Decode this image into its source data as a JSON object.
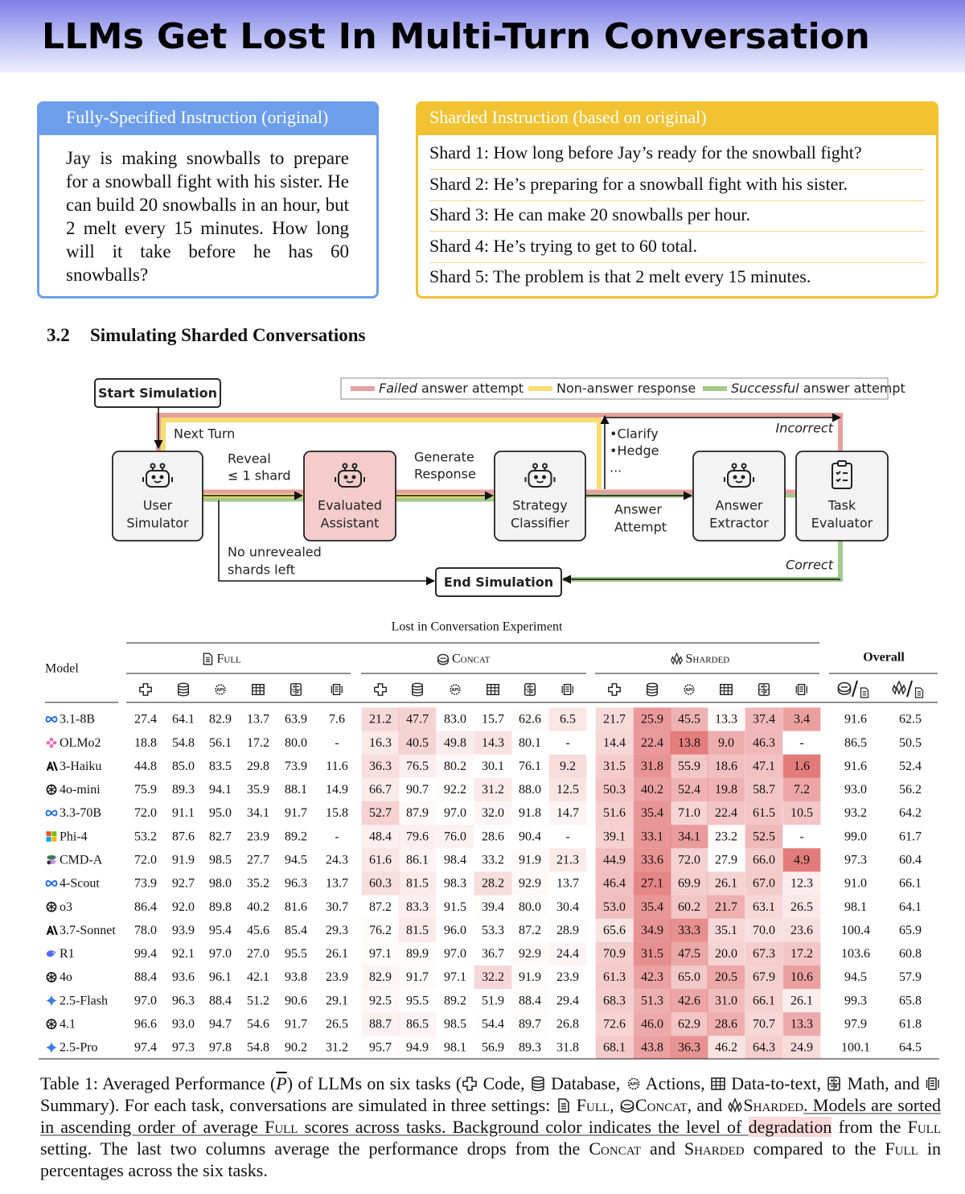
{
  "title": "LLMs Get Lost In Multi-Turn Conversation",
  "fully_specified": {
    "header": "Fully-Specified Instruction (original)",
    "text": "Jay is making snowballs to prepare for a snowball fight with his sister. He can build 20 snowballs in an hour, but 2 melt every 15 minutes. How long will it take before he has 60 snowballs?"
  },
  "sharded": {
    "header": "Sharded Instruction (based on original)",
    "shards": [
      "Shard 1: How long before Jay’s ready for the snowball fight?",
      "Shard 2: He’s preparing for a snowball fight with his sister.",
      "Shard 3: He can make 20 snowballs per hour.",
      "Shard 4: He’s trying to get to 60 total.",
      "Shard 5: The problem is that 2 melt every 15 minutes."
    ]
  },
  "section": {
    "number": "3.2",
    "title": "Simulating Sharded Conversations"
  },
  "diagram": {
    "legend": [
      {
        "emph": "Failed",
        "text": " answer attempt"
      },
      {
        "emph": "",
        "text": "Non-answer response"
      },
      {
        "emph": "Successful",
        "text": " answer attempt"
      }
    ],
    "start": "Start Simulation",
    "end": "End Simulation",
    "nodes": [
      [
        "User",
        "Simulator"
      ],
      [
        "Evaluated",
        "Assistant"
      ],
      [
        "Strategy",
        "Classifier"
      ],
      [
        "Answer",
        "Extractor"
      ],
      [
        "Task",
        "Evaluator"
      ]
    ],
    "next_turn": "Next Turn",
    "reveal": [
      "Reveal",
      "≤ 1 shard"
    ],
    "generate": [
      "Generate",
      "Response"
    ],
    "strategies": [
      "•Clarify",
      "•Hedge",
      "..."
    ],
    "answer_attempt": [
      "Answer",
      "Attempt"
    ],
    "no_shards": [
      "No unrevealed",
      "shards left"
    ],
    "incorrect": "Incorrect",
    "correct": "Correct"
  },
  "table": {
    "title": "Lost in Conversation Experiment",
    "model_header": "Model",
    "settings": [
      "Full",
      "Concat",
      "Sharded"
    ],
    "overall_header": "Overall",
    "rows": [
      {
        "model": "3.1-8B",
        "cells": [
          [
            "27.4",
            "64.1",
            "82.9",
            "13.7",
            "63.9",
            "7.6"
          ],
          [
            "21.2",
            "47.7",
            "83.0",
            "15.7",
            "62.6",
            "6.5"
          ],
          [
            "21.7",
            "25.9",
            "45.5",
            "13.3",
            "37.4",
            "3.4"
          ]
        ],
        "overall": [
          "91.6",
          "62.5"
        ]
      },
      {
        "model": "OLMo2",
        "cells": [
          [
            "18.8",
            "54.8",
            "56.1",
            "17.2",
            "80.0",
            "-"
          ],
          [
            "16.3",
            "40.5",
            "49.8",
            "14.3",
            "80.1",
            "-"
          ],
          [
            "14.4",
            "22.4",
            "13.8",
            "9.0",
            "46.3",
            "-"
          ]
        ],
        "overall": [
          "86.5",
          "50.5"
        ]
      },
      {
        "model": "3-Haiku",
        "cells": [
          [
            "44.8",
            "85.0",
            "83.5",
            "29.8",
            "73.9",
            "11.6"
          ],
          [
            "36.3",
            "76.5",
            "80.2",
            "30.1",
            "76.1",
            "9.2"
          ],
          [
            "31.5",
            "31.8",
            "55.9",
            "18.6",
            "47.1",
            "1.6"
          ]
        ],
        "overall": [
          "91.6",
          "52.4"
        ]
      },
      {
        "model": "4o-mini",
        "cells": [
          [
            "75.9",
            "89.3",
            "94.1",
            "35.9",
            "88.1",
            "14.9"
          ],
          [
            "66.7",
            "90.7",
            "92.2",
            "31.2",
            "88.0",
            "12.5"
          ],
          [
            "50.3",
            "40.2",
            "52.4",
            "19.8",
            "58.7",
            "7.2"
          ]
        ],
        "overall": [
          "93.0",
          "56.2"
        ]
      },
      {
        "model": "3.3-70B",
        "cells": [
          [
            "72.0",
            "91.1",
            "95.0",
            "34.1",
            "91.7",
            "15.8"
          ],
          [
            "52.7",
            "87.9",
            "97.0",
            "32.0",
            "91.8",
            "14.7"
          ],
          [
            "51.6",
            "35.4",
            "71.0",
            "22.4",
            "61.5",
            "10.5"
          ]
        ],
        "overall": [
          "93.2",
          "64.2"
        ]
      },
      {
        "model": "Phi-4",
        "cells": [
          [
            "53.2",
            "87.6",
            "82.7",
            "23.9",
            "89.2",
            "-"
          ],
          [
            "48.4",
            "79.6",
            "76.0",
            "28.6",
            "90.4",
            "-"
          ],
          [
            "39.1",
            "33.1",
            "34.1",
            "23.2",
            "52.5",
            "-"
          ]
        ],
        "overall": [
          "99.0",
          "61.7"
        ]
      },
      {
        "model": "CMD-A",
        "cells": [
          [
            "72.0",
            "91.9",
            "98.5",
            "27.7",
            "94.5",
            "24.3"
          ],
          [
            "61.6",
            "86.1",
            "98.4",
            "33.2",
            "91.9",
            "21.3"
          ],
          [
            "44.9",
            "33.6",
            "72.0",
            "27.9",
            "66.0",
            "4.9"
          ]
        ],
        "overall": [
          "97.3",
          "60.4"
        ]
      },
      {
        "model": "4-Scout",
        "cells": [
          [
            "73.9",
            "92.7",
            "98.0",
            "35.2",
            "96.3",
            "13.7"
          ],
          [
            "60.3",
            "81.5",
            "98.3",
            "28.2",
            "92.9",
            "13.7"
          ],
          [
            "46.4",
            "27.1",
            "69.9",
            "26.1",
            "67.0",
            "12.3"
          ]
        ],
        "overall": [
          "91.0",
          "66.1"
        ]
      },
      {
        "model": "o3",
        "cells": [
          [
            "86.4",
            "92.0",
            "89.8",
            "40.2",
            "81.6",
            "30.7"
          ],
          [
            "87.2",
            "83.3",
            "91.5",
            "39.4",
            "80.0",
            "30.4"
          ],
          [
            "53.0",
            "35.4",
            "60.2",
            "21.7",
            "63.1",
            "26.5"
          ]
        ],
        "overall": [
          "98.1",
          "64.1"
        ]
      },
      {
        "model": "3.7-Sonnet",
        "cells": [
          [
            "78.0",
            "93.9",
            "95.4",
            "45.6",
            "85.4",
            "29.3"
          ],
          [
            "76.2",
            "81.5",
            "96.0",
            "53.3",
            "87.2",
            "28.9"
          ],
          [
            "65.6",
            "34.9",
            "33.3",
            "35.1",
            "70.0",
            "23.6"
          ]
        ],
        "overall": [
          "100.4",
          "65.9"
        ]
      },
      {
        "model": "R1",
        "cells": [
          [
            "99.4",
            "92.1",
            "97.0",
            "27.0",
            "95.5",
            "26.1"
          ],
          [
            "97.1",
            "89.9",
            "97.0",
            "36.7",
            "92.9",
            "24.4"
          ],
          [
            "70.9",
            "31.5",
            "47.5",
            "20.0",
            "67.3",
            "17.2"
          ]
        ],
        "overall": [
          "103.6",
          "60.8"
        ]
      },
      {
        "model": "4o",
        "cells": [
          [
            "88.4",
            "93.6",
            "96.1",
            "42.1",
            "93.8",
            "23.9"
          ],
          [
            "82.9",
            "91.7",
            "97.1",
            "32.2",
            "91.9",
            "23.9"
          ],
          [
            "61.3",
            "42.3",
            "65.0",
            "20.5",
            "67.9",
            "10.6"
          ]
        ],
        "overall": [
          "94.5",
          "57.9"
        ]
      },
      {
        "model": "2.5-Flash",
        "cells": [
          [
            "97.0",
            "96.3",
            "88.4",
            "51.2",
            "90.6",
            "29.1"
          ],
          [
            "92.5",
            "95.5",
            "89.2",
            "51.9",
            "88.4",
            "29.4"
          ],
          [
            "68.3",
            "51.3",
            "42.6",
            "31.0",
            "66.1",
            "26.1"
          ]
        ],
        "overall": [
          "99.3",
          "65.8"
        ]
      },
      {
        "model": "4.1",
        "cells": [
          [
            "96.6",
            "93.0",
            "94.7",
            "54.6",
            "91.7",
            "26.5"
          ],
          [
            "88.7",
            "86.5",
            "98.5",
            "54.4",
            "89.7",
            "26.8"
          ],
          [
            "72.6",
            "46.0",
            "62.9",
            "28.6",
            "70.7",
            "13.3"
          ]
        ],
        "overall": [
          "97.9",
          "61.8"
        ]
      },
      {
        "model": "2.5-Pro",
        "cells": [
          [
            "97.4",
            "97.3",
            "97.8",
            "54.8",
            "90.2",
            "31.2"
          ],
          [
            "95.7",
            "94.9",
            "98.1",
            "56.9",
            "89.3",
            "31.8"
          ],
          [
            "68.1",
            "43.8",
            "36.3",
            "46.2",
            "64.3",
            "24.9"
          ]
        ],
        "overall": [
          "100.1",
          "64.5"
        ]
      }
    ]
  },
  "caption": [
    "Table 1: Averaged Performance (",
    "P",
    ") of LLMs on six tasks (",
    " Code, ",
    " Database, ",
    " Actions, ",
    " Data-to-text, ",
    " Math, and ",
    " Summary). For each task, conversations are simulated in three settings: ",
    " Full",
    ", ",
    "Concat",
    ", and ",
    "Sharded",
    ". Models are sorted in ascending order of average ",
    "Full",
    " scores across tasks. Background color indicates the level of ",
    "degradation",
    " from the ",
    "Full",
    " setting. The last two columns average the performance drops from the ",
    "Concat",
    " and ",
    "Sharded",
    " compared to the ",
    "Full",
    " in percentages across the six tasks."
  ]
}
